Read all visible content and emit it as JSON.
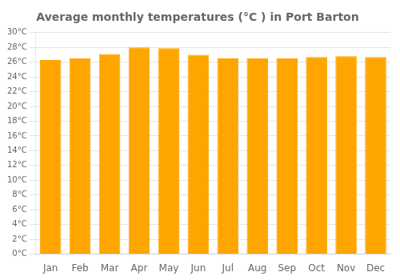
{
  "chart_data": {
    "type": "bar",
    "title": "Average monthly temperatures (°C ) in Port Barton",
    "categories": [
      "Jan",
      "Feb",
      "Mar",
      "Apr",
      "May",
      "Jun",
      "Jul",
      "Aug",
      "Sep",
      "Oct",
      "Nov",
      "Dec"
    ],
    "values": [
      26.3,
      26.5,
      27.1,
      28.0,
      27.9,
      27.0,
      26.5,
      26.5,
      26.5,
      26.7,
      26.8,
      26.7
    ],
    "color": "#FFA500",
    "ylim": [
      0,
      30
    ],
    "yticks": [
      {
        "value": 0,
        "label": "0°C"
      },
      {
        "value": 2,
        "label": "2°C"
      },
      {
        "value": 4,
        "label": "4°C"
      },
      {
        "value": 6,
        "label": "6°C"
      },
      {
        "value": 8,
        "label": "8°C"
      },
      {
        "value": 10,
        "label": "10°C"
      },
      {
        "value": 12,
        "label": "12°C"
      },
      {
        "value": 14,
        "label": "14°C"
      },
      {
        "value": 16,
        "label": "16°C"
      },
      {
        "value": 18,
        "label": "18°C"
      },
      {
        "value": 20,
        "label": "20°C"
      },
      {
        "value": 22,
        "label": "22°C"
      },
      {
        "value": 24,
        "label": "24°C"
      },
      {
        "value": 26,
        "label": "26°C"
      },
      {
        "value": 28,
        "label": "28°C"
      },
      {
        "value": 30,
        "label": "30°C"
      }
    ],
    "grid": true
  }
}
